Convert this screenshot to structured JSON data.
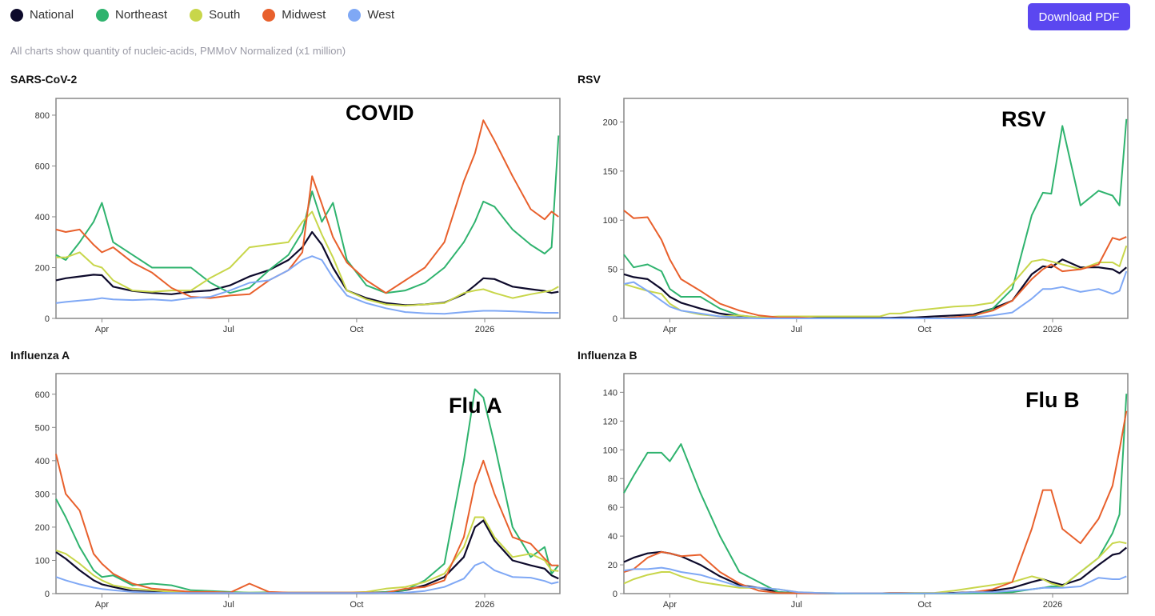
{
  "legend": [
    {
      "name": "National",
      "color": "#0d0a2b"
    },
    {
      "name": "Northeast",
      "color": "#2fb36e"
    },
    {
      "name": "South",
      "color": "#c8d64a"
    },
    {
      "name": "Midwest",
      "color": "#e8602c"
    },
    {
      "name": "West",
      "color": "#7fa8f5"
    }
  ],
  "download_label": "Download PDF",
  "accent_color": "#5b47f0",
  "note": "All charts show quantity of nucleic-acids, PMMoV Normalized (x1 million)",
  "chart_data": [
    {
      "type": "line",
      "title": "SARS-CoV-2",
      "annotation": "COVID",
      "ylim": [
        0,
        866
      ],
      "yticks": [
        0,
        200,
        400,
        600,
        800
      ],
      "xlim": [
        "2025-02-27",
        "2026-02-24"
      ],
      "xticks": [
        {
          "date": "2025-04-01",
          "label": "Apr"
        },
        {
          "date": "2025-07-01",
          "label": "Jul"
        },
        {
          "date": "2025-10-01",
          "label": "Oct"
        },
        {
          "date": "2026-01-01",
          "label": "2026"
        }
      ],
      "series": [
        {
          "name": "National",
          "values": [
            150,
            158,
            165,
            172,
            170,
            125,
            108,
            100,
            95,
            105,
            110,
            130,
            165,
            190,
            230,
            280,
            340,
            290,
            200,
            110,
            80,
            60,
            52,
            55,
            62,
            95,
            130,
            158,
            155,
            125,
            115,
            108,
            100,
            105
          ]
        },
        {
          "name": "Northeast",
          "values": [
            250,
            230,
            300,
            380,
            455,
            300,
            250,
            200,
            200,
            200,
            140,
            100,
            120,
            190,
            250,
            340,
            500,
            380,
            455,
            230,
            130,
            100,
            110,
            140,
            200,
            300,
            380,
            460,
            440,
            350,
            290,
            255,
            280,
            720
          ]
        },
        {
          "name": "South",
          "values": [
            240,
            240,
            260,
            210,
            200,
            150,
            110,
            105,
            110,
            110,
            160,
            200,
            280,
            290,
            300,
            380,
            420,
            330,
            240,
            110,
            75,
            55,
            50,
            55,
            60,
            100,
            110,
            115,
            100,
            80,
            95,
            105,
            110,
            125
          ]
        },
        {
          "name": "Midwest",
          "values": [
            350,
            340,
            350,
            290,
            260,
            280,
            220,
            180,
            120,
            85,
            80,
            90,
            95,
            150,
            190,
            260,
            560,
            450,
            320,
            220,
            150,
            100,
            150,
            200,
            300,
            540,
            650,
            780,
            700,
            560,
            430,
            390,
            420,
            400
          ]
        },
        {
          "name": "West",
          "values": [
            60,
            65,
            70,
            75,
            80,
            75,
            72,
            75,
            70,
            80,
            85,
            110,
            140,
            150,
            190,
            230,
            245,
            230,
            160,
            90,
            60,
            40,
            25,
            20,
            18,
            25,
            28,
            30,
            30,
            28,
            25,
            22,
            22,
            22
          ]
        }
      ]
    },
    {
      "type": "line",
      "title": "RSV",
      "annotation": "RSV",
      "ylim": [
        0,
        224
      ],
      "yticks": [
        0,
        50,
        100,
        150,
        200
      ],
      "xlim": [
        "2025-02-27",
        "2026-02-24"
      ],
      "xticks": [
        {
          "date": "2025-04-01",
          "label": "Apr"
        },
        {
          "date": "2025-07-01",
          "label": "Jul"
        },
        {
          "date": "2025-10-01",
          "label": "Oct"
        },
        {
          "date": "2026-01-01",
          "label": "2026"
        }
      ],
      "series": [
        {
          "name": "National",
          "values": [
            45,
            42,
            40,
            30,
            22,
            16,
            10,
            5,
            2,
            1,
            0.5,
            0.5,
            0.5,
            0.5,
            0.5,
            0.5,
            0.5,
            0.5,
            1,
            1,
            2,
            3,
            4,
            10,
            18,
            45,
            53,
            52,
            60,
            52,
            52,
            50,
            46,
            52
          ]
        },
        {
          "name": "Northeast",
          "values": [
            65,
            52,
            55,
            48,
            30,
            22,
            22,
            10,
            3,
            1,
            0,
            0,
            0,
            0,
            0,
            0,
            0,
            0,
            0,
            0,
            0,
            1,
            2,
            10,
            30,
            105,
            128,
            127,
            196,
            115,
            130,
            125,
            115,
            203
          ]
        },
        {
          "name": "South",
          "values": [
            35,
            32,
            28,
            25,
            15,
            8,
            4,
            2,
            3,
            1,
            2,
            2,
            2,
            2,
            2,
            2,
            2,
            5,
            5,
            8,
            10,
            12,
            13,
            16,
            35,
            58,
            60,
            58,
            55,
            50,
            57,
            57,
            53,
            74
          ]
        },
        {
          "name": "Midwest",
          "values": [
            110,
            102,
            103,
            80,
            60,
            40,
            28,
            15,
            8,
            3,
            1,
            1,
            0,
            0,
            0,
            0,
            0,
            0,
            0,
            0,
            0,
            1,
            3,
            8,
            18,
            40,
            50,
            55,
            48,
            50,
            55,
            82,
            80,
            83
          ]
        },
        {
          "name": "West",
          "values": [
            35,
            37,
            28,
            18,
            12,
            8,
            5,
            2,
            1,
            0,
            0,
            0,
            0,
            0,
            0,
            0,
            0,
            0,
            0,
            0,
            0,
            0,
            1,
            3,
            6,
            20,
            30,
            30,
            32,
            27,
            30,
            25,
            28,
            48
          ]
        }
      ]
    },
    {
      "type": "line",
      "title": "Influenza A",
      "annotation": "Flu A",
      "ylim": [
        0,
        662
      ],
      "yticks": [
        0,
        100,
        200,
        300,
        400,
        500,
        600
      ],
      "xlim": [
        "2025-02-27",
        "2026-02-24"
      ],
      "xticks": [
        {
          "date": "2025-04-01",
          "label": "Apr"
        },
        {
          "date": "2025-07-01",
          "label": "Jul"
        },
        {
          "date": "2025-10-01",
          "label": "Oct"
        },
        {
          "date": "2026-01-01",
          "label": "2026"
        }
      ],
      "series": [
        {
          "name": "National",
          "values": [
            125,
            105,
            70,
            40,
            28,
            20,
            8,
            5,
            3,
            2,
            2,
            2,
            2,
            2,
            2,
            2,
            2,
            2,
            2,
            2,
            2,
            3,
            10,
            25,
            50,
            110,
            200,
            220,
            160,
            100,
            85,
            75,
            55,
            45
          ]
        },
        {
          "name": "Northeast",
          "values": [
            285,
            230,
            140,
            70,
            50,
            55,
            25,
            30,
            25,
            10,
            8,
            5,
            3,
            4,
            3,
            3,
            3,
            3,
            3,
            3,
            3,
            5,
            10,
            40,
            90,
            400,
            615,
            590,
            450,
            200,
            110,
            140,
            60,
            85
          ]
        },
        {
          "name": "South",
          "values": [
            130,
            120,
            90,
            55,
            40,
            25,
            15,
            10,
            5,
            5,
            5,
            3,
            3,
            3,
            3,
            3,
            3,
            3,
            3,
            3,
            5,
            15,
            20,
            35,
            60,
            140,
            230,
            230,
            170,
            110,
            120,
            100,
            70,
            68
          ]
        },
        {
          "name": "Midwest",
          "values": [
            420,
            300,
            250,
            120,
            90,
            60,
            30,
            15,
            10,
            5,
            5,
            3,
            30,
            5,
            3,
            3,
            3,
            3,
            3,
            3,
            3,
            3,
            15,
            20,
            40,
            170,
            330,
            400,
            300,
            170,
            150,
            105,
            85,
            85
          ]
        },
        {
          "name": "West",
          "values": [
            50,
            40,
            28,
            18,
            14,
            10,
            5,
            3,
            2,
            2,
            2,
            2,
            2,
            2,
            2,
            2,
            2,
            2,
            2,
            2,
            2,
            2,
            3,
            8,
            20,
            45,
            85,
            95,
            70,
            50,
            48,
            38,
            30,
            35
          ]
        }
      ]
    },
    {
      "type": "line",
      "title": "Influenza B",
      "annotation": "Flu B",
      "ylim": [
        0,
        153
      ],
      "yticks": [
        0,
        20,
        40,
        60,
        80,
        100,
        120,
        140
      ],
      "xlim": [
        "2025-02-27",
        "2026-02-24"
      ],
      "xticks": [
        {
          "date": "2025-04-01",
          "label": "Apr"
        },
        {
          "date": "2025-07-01",
          "label": "Jul"
        },
        {
          "date": "2025-10-01",
          "label": "Oct"
        },
        {
          "date": "2026-01-01",
          "label": "2026"
        }
      ],
      "series": [
        {
          "name": "National",
          "values": [
            22,
            25,
            28,
            29,
            28,
            26,
            20,
            12,
            6,
            4,
            1,
            0.5,
            0.3,
            0.2,
            0.2,
            0.2,
            0.2,
            0.2,
            0.2,
            0.2,
            0.2,
            0.5,
            1,
            2,
            4,
            8,
            10,
            8,
            6,
            10,
            20,
            27,
            28,
            32
          ]
        },
        {
          "name": "Northeast",
          "values": [
            70,
            82,
            98,
            98,
            92,
            104,
            70,
            40,
            15,
            8,
            1,
            0.5,
            0.3,
            0,
            0,
            0,
            0,
            0,
            0,
            0,
            0,
            0,
            0.3,
            0.5,
            1,
            3,
            4,
            5,
            5,
            15,
            25,
            42,
            55,
            139
          ]
        },
        {
          "name": "South",
          "values": [
            7,
            10,
            13,
            15,
            15,
            12,
            8,
            6,
            4,
            4,
            3,
            1,
            0.5,
            0.3,
            0.2,
            0.2,
            0.2,
            0.5,
            0.5,
            0.5,
            0.5,
            2,
            4,
            6,
            8,
            12,
            10,
            7,
            5,
            15,
            25,
            35,
            36,
            35
          ]
        },
        {
          "name": "Midwest",
          "values": [
            15,
            17,
            25,
            29,
            28,
            26,
            27,
            15,
            7,
            2,
            0.5,
            0.3,
            0.2,
            0.2,
            0.2,
            0.2,
            0.2,
            0.5,
            0.5,
            0.3,
            0.2,
            0.3,
            1,
            3,
            8,
            45,
            72,
            72,
            45,
            35,
            52,
            75,
            100,
            127
          ]
        },
        {
          "name": "West",
          "values": [
            16,
            17,
            17,
            18,
            17,
            15,
            13,
            9,
            5,
            4,
            3,
            1,
            0.5,
            0.3,
            0.2,
            0.2,
            0.2,
            0.2,
            0.2,
            0.2,
            0.2,
            0.3,
            1,
            1,
            2,
            3,
            4,
            4,
            4,
            5,
            11,
            10,
            10,
            12
          ]
        }
      ]
    }
  ],
  "x_dates": [
    "2025-02-27",
    "2025-03-06",
    "2025-03-16",
    "2025-03-26",
    "2025-04-01",
    "2025-04-09",
    "2025-04-23",
    "2025-05-07",
    "2025-05-21",
    "2025-06-04",
    "2025-06-18",
    "2025-07-02",
    "2025-07-16",
    "2025-07-30",
    "2025-08-13",
    "2025-08-23",
    "2025-08-30",
    "2025-09-06",
    "2025-09-14",
    "2025-09-24",
    "2025-10-08",
    "2025-10-22",
    "2025-11-05",
    "2025-11-19",
    "2025-12-03",
    "2025-12-17",
    "2025-12-25",
    "2025-12-31",
    "2026-01-08",
    "2026-01-21",
    "2026-02-03",
    "2026-02-13",
    "2026-02-18",
    "2026-02-23"
  ]
}
